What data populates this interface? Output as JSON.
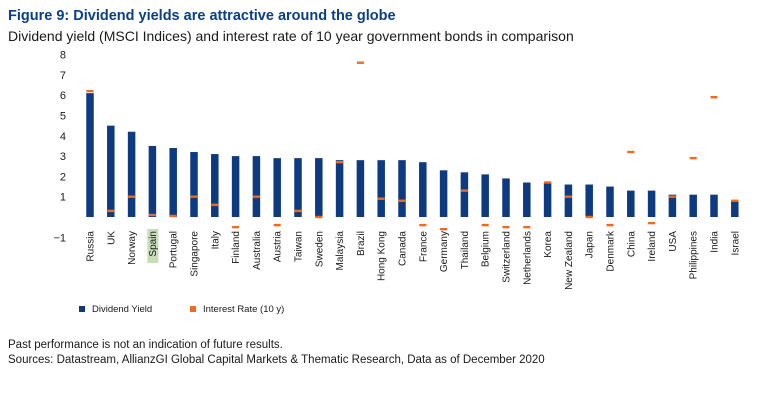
{
  "figure": {
    "title": "Figure 9: Dividend yields are attractive around the globe",
    "subtitle": "Dividend yield (MSCI Indices) and interest rate of 10 year government bonds in comparison"
  },
  "notes": {
    "disclaimer": "Past performance is not an indication of future results.",
    "sources": "Sources: Datastream, AllianzGI Global Capital Markets & Thematic Research, Data as of December 2020"
  },
  "colors": {
    "dividend": "#0e3a80",
    "interest": "#ee6a1e",
    "highlight": "#c6ddb8"
  },
  "chart_data": {
    "type": "bar",
    "title": "",
    "xlabel": "",
    "ylabel": "",
    "ylim": [
      -1,
      8
    ],
    "yticks": [
      8,
      7,
      6,
      5,
      4,
      3,
      2,
      1,
      0,
      -1
    ],
    "ytick_labels": [
      "8",
      "7",
      "6",
      "5",
      "4",
      "3",
      "2",
      "1",
      "",
      "−1"
    ],
    "grid": false,
    "legend": "bottom-left",
    "highlight_category": "Spain",
    "categories": [
      "Russia",
      "UK",
      "Norway",
      "Spain",
      "Portugal",
      "Singapore",
      "Italy",
      "Finland",
      "Australia",
      "Austria",
      "Taiwan",
      "Sweden",
      "Malaysia",
      "Brazil",
      "Hong Kong",
      "Canada",
      "France",
      "Germany",
      "Thailand",
      "Belgium",
      "Switzerland",
      "Netherlands",
      "Korea",
      "New Zealand",
      "Japan",
      "Denmark",
      "China",
      "Ireland",
      "USA",
      "Philippines",
      "India",
      "Israel"
    ],
    "series": [
      {
        "name": "Dividend Yield",
        "mark": "bar",
        "values": [
          6.1,
          4.5,
          4.2,
          3.5,
          3.4,
          3.2,
          3.1,
          3.0,
          3.0,
          2.9,
          2.9,
          2.9,
          2.8,
          2.8,
          2.8,
          2.8,
          2.7,
          2.3,
          2.2,
          2.1,
          1.9,
          1.7,
          1.7,
          1.6,
          1.6,
          1.5,
          1.3,
          1.3,
          1.1,
          1.1,
          1.1,
          0.8
        ]
      },
      {
        "name": "Interest Rate (10 y)",
        "mark": "dash",
        "values": [
          6.2,
          0.3,
          1.0,
          0.1,
          0.05,
          1.0,
          0.6,
          -0.5,
          1.0,
          -0.4,
          0.3,
          0.0,
          2.7,
          7.6,
          0.9,
          0.8,
          -0.4,
          -0.6,
          1.3,
          -0.4,
          -0.5,
          -0.5,
          1.7,
          1.0,
          0.0,
          -0.4,
          3.2,
          -0.3,
          1.0,
          2.9,
          5.9,
          0.8
        ]
      }
    ]
  }
}
